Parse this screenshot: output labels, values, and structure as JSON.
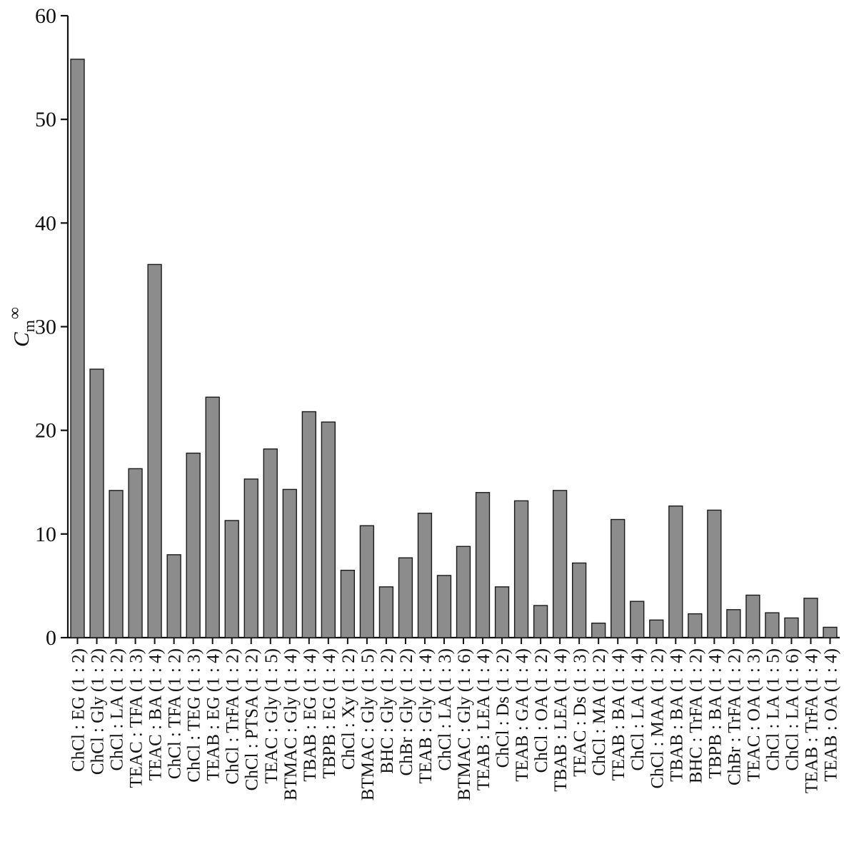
{
  "chart_data": {
    "type": "bar",
    "title": "",
    "xlabel": "",
    "ylabel": {
      "base": "C",
      "sub": "m",
      "sup": "∞"
    },
    "ylim": [
      0,
      60
    ],
    "yticks": [
      0,
      10,
      20,
      30,
      40,
      50,
      60
    ],
    "grid": false,
    "legend": "none",
    "bar_fill": "#8c8c8c",
    "bar_stroke": "#1a1a1a",
    "axis_color": "#111111",
    "categories": [
      "ChCl : EG (1 : 2)",
      "ChCl : Gly (1 : 2)",
      "ChCl : LA (1 : 2)",
      "TEAC : TFA (1 : 3)",
      "TEAC : BA (1 : 4)",
      "ChCl : TFA (1 : 2)",
      "ChCl : TEG (1 : 3)",
      "TEAB : EG (1 : 4)",
      "ChCl : TrFA (1 : 2)",
      "ChCl : PTSA (1 : 2)",
      "TEAC : Gly (1 : 5)",
      "BTMAC : Gly (1 : 4)",
      "TBAB : EG (1 : 4)",
      "TBPB : EG (1 : 4)",
      "ChCl : Xy (1 : 2)",
      "BTMAC : Gly (1 : 5)",
      "BHC : Gly (1 : 2)",
      "ChBr : Gly (1 : 2)",
      "TEAB : Gly (1 : 4)",
      "ChCl : LA (1 : 3)",
      "BTMAC : Gly (1 : 6)",
      "TEAB : LEA (1 : 4)",
      "ChCl : Ds (1 : 2)",
      "TEAB : GA (1 : 4)",
      "ChCl : OA (1 : 2)",
      "TBAB : LEA (1 : 4)",
      "TEAC : Ds (1 : 3)",
      "ChCl : MA (1 : 2)",
      "TEAB : BA (1 : 4)",
      "ChCl : LA (1 : 4)",
      "ChCl : MAA (1 : 2)",
      "TBAB : BA (1 : 4)",
      "BHC : TrFA (1 : 2)",
      "TBPB : BA (1 : 4)",
      "ChBr : TrFA (1 : 2)",
      "TEAC : OA (1 : 3)",
      "ChCl : LA (1 : 5)",
      "ChCl : LA (1 : 6)",
      "TEAB : TrFA (1 : 4)",
      "TEAB : OA (1 : 4)"
    ],
    "values": [
      55.8,
      25.9,
      14.2,
      16.3,
      36.0,
      8.0,
      17.8,
      23.2,
      11.3,
      15.3,
      18.2,
      14.3,
      21.8,
      20.8,
      6.5,
      10.8,
      4.9,
      7.7,
      12.0,
      6.0,
      8.8,
      14.0,
      4.9,
      13.2,
      3.1,
      14.2,
      7.2,
      1.4,
      11.4,
      3.5,
      1.7,
      12.7,
      2.3,
      12.3,
      2.7,
      4.1,
      2.4,
      1.9,
      3.8,
      1.0
    ]
  }
}
